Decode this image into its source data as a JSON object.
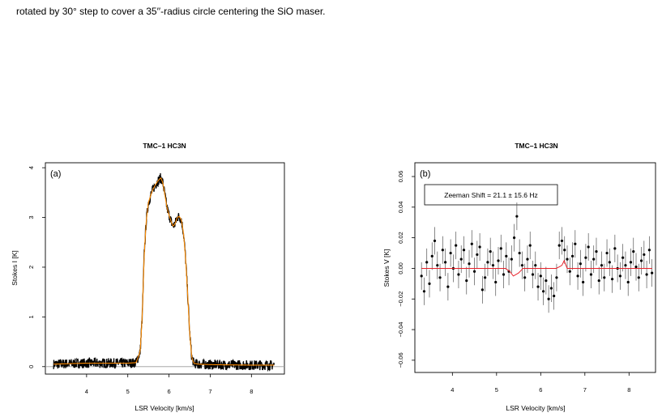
{
  "caption": "rotated by 30° step to cover a 35′′-radius circle centering the SiO maser.",
  "chart_data": [
    {
      "type": "line",
      "panel_label": "(a)",
      "title": "TMC–1 HC3N",
      "xlabel": "LSR Velocity [km/s]",
      "ylabel": "Stokes I [K]",
      "xlim": [
        3.0,
        8.8
      ],
      "ylim": [
        -0.15,
        4.1
      ],
      "xticks": [
        4,
        5,
        6,
        7,
        8
      ],
      "yticks": [
        0,
        1,
        2,
        3,
        4
      ],
      "baseline": 0,
      "series": [
        {
          "x": [
            3.2,
            4.0,
            5.0,
            5.2,
            5.3,
            5.35,
            5.4,
            5.45,
            5.5,
            5.6,
            5.7,
            5.8,
            5.85,
            5.9,
            5.95,
            6.0,
            6.05,
            6.1,
            6.15,
            6.2,
            6.25,
            6.3,
            6.35,
            6.4,
            6.45,
            6.5,
            6.55,
            6.6,
            6.7,
            7.0,
            8.0,
            8.55
          ],
          "y": [
            0.05,
            0.07,
            0.07,
            0.08,
            0.3,
            1.0,
            2.3,
            2.95,
            3.3,
            3.55,
            3.7,
            3.8,
            3.7,
            3.45,
            3.2,
            3.05,
            2.92,
            2.82,
            2.88,
            3.0,
            3.02,
            2.95,
            2.7,
            2.2,
            1.5,
            0.7,
            0.2,
            0.07,
            0.05,
            0.04,
            0.03,
            0.03
          ],
          "color": "#000000"
        }
      ],
      "fit_color": "#ff8c00"
    },
    {
      "type": "scatter",
      "panel_label": "(b)",
      "title": "TMC–1 HC3N",
      "xlabel": "LSR Velocity [km/s]",
      "ylabel": "Stokes V [K]",
      "xlim": [
        3.15,
        8.6
      ],
      "ylim": [
        -0.068,
        0.069
      ],
      "xticks": [
        4,
        5,
        6,
        7,
        8
      ],
      "yticks": [
        -0.06,
        -0.04,
        -0.02,
        0.0,
        0.02,
        0.04,
        0.06
      ],
      "ytick_labels": [
        "−0.06",
        "−0.04",
        "−0.02",
        "0.00",
        "0.02",
        "0.04",
        "0.06"
      ],
      "legend": "Zeeman Shift =  21.1 ± 15.6 Hz",
      "errorbar": 0.009,
      "x": [
        3.3,
        3.36,
        3.42,
        3.48,
        3.54,
        3.6,
        3.66,
        3.72,
        3.78,
        3.84,
        3.9,
        3.96,
        4.02,
        4.08,
        4.14,
        4.2,
        4.26,
        4.32,
        4.38,
        4.44,
        4.5,
        4.56,
        4.62,
        4.68,
        4.74,
        4.8,
        4.86,
        4.92,
        4.98,
        5.04,
        5.1,
        5.16,
        5.22,
        5.28,
        5.34,
        5.4,
        5.46,
        5.52,
        5.58,
        5.64,
        5.7,
        5.76,
        5.82,
        5.88,
        5.94,
        6.0,
        6.06,
        6.12,
        6.18,
        6.24,
        6.3,
        6.36,
        6.42,
        6.48,
        6.54,
        6.6,
        6.66,
        6.72,
        6.78,
        6.84,
        6.9,
        6.96,
        7.02,
        7.08,
        7.14,
        7.2,
        7.26,
        7.32,
        7.38,
        7.44,
        7.5,
        7.56,
        7.62,
        7.68,
        7.74,
        7.8,
        7.86,
        7.92,
        7.98,
        8.04,
        8.1,
        8.16,
        8.22,
        8.28,
        8.34,
        8.4,
        8.46,
        8.52
      ],
      "y": [
        -0.005,
        -0.015,
        0.004,
        -0.01,
        0.008,
        0.018,
        0.002,
        -0.006,
        0.012,
        0.004,
        -0.012,
        0.01,
        0.0,
        0.015,
        -0.004,
        0.006,
        0.012,
        -0.008,
        0.003,
        0.016,
        -0.002,
        0.009,
        0.014,
        -0.014,
        -0.006,
        0.004,
        0.011,
        0.002,
        -0.009,
        0.005,
        0.013,
        -0.004,
        0.008,
        -0.002,
        0.006,
        0.02,
        0.034,
        0.01,
        0.002,
        -0.006,
        0.006,
        0.015,
        -0.004,
        0.002,
        -0.012,
        -0.005,
        -0.015,
        -0.008,
        -0.02,
        -0.013,
        -0.018,
        -0.006,
        0.015,
        0.018,
        0.012,
        0.006,
        -0.002,
        0.008,
        0.016,
        -0.005,
        0.003,
        -0.009,
        0.007,
        0.014,
        -0.004,
        0.006,
        0.011,
        -0.008,
        0.002,
        -0.006,
        0.01,
        0.004,
        -0.007,
        0.013,
        0.0,
        -0.005,
        0.007,
        0.002,
        -0.009,
        0.004,
        0.011,
        0.001,
        -0.006,
        0.005,
        0.009,
        -0.004,
        0.012,
        -0.003
      ],
      "fit": {
        "x": [
          3.3,
          5.2,
          5.3,
          5.38,
          5.5,
          5.6,
          6.3,
          6.35,
          6.42,
          6.48,
          6.53,
          6.6,
          6.7,
          8.52
        ],
        "y": [
          0.0,
          0.0,
          -0.002,
          -0.005,
          -0.003,
          0.0,
          0.0,
          0.0,
          0.001,
          0.002,
          0.005,
          0.0,
          0.0,
          0.0
        ]
      },
      "fit_color": "#e8222a"
    }
  ]
}
